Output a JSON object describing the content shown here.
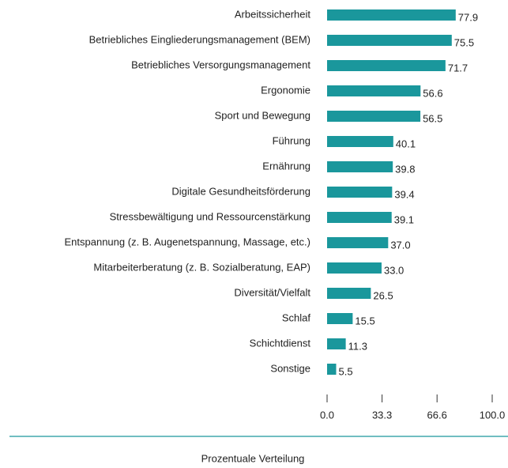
{
  "chart_data": {
    "type": "bar",
    "orientation": "horizontal",
    "x_label": "Prozentuale Verteilung",
    "categories": [
      "Arbeitssicherheit",
      "Betriebliches Eingliederungsmanagement (BEM)",
      "Betriebliches Versorgungsmanagement",
      "Ergonomie",
      "Sport und Bewegung",
      "Führung",
      "Ernährung",
      "Digitale Gesundheitsförderung",
      "Stressbewältigung und Ressourcenstärkung",
      "Entspannung (z. B. Augenetspannung, Massage, etc.)",
      "Mitarbeiterberatung (z. B. Sozialberatung, EAP)",
      "Diversität/Vielfalt",
      "Schlaf",
      "Schichtdienst",
      "Sonstige"
    ],
    "values": [
      77.9,
      75.5,
      71.7,
      56.6,
      56.5,
      40.1,
      39.8,
      39.4,
      39.1,
      37.0,
      33.0,
      26.5,
      15.5,
      11.3,
      5.5
    ],
    "value_labels": [
      "77.9",
      "75.5",
      "71.7",
      "56.6",
      "56.5",
      "40.1",
      "39.8",
      "39.4",
      "39.1",
      "37.0",
      "33.0",
      "26.5",
      "15.5",
      "11.3",
      "5.5"
    ],
    "color": "#1a979c",
    "xlim": [
      0,
      100
    ],
    "xticks": [
      {
        "value": 0,
        "label": "0.0"
      },
      33.3,
      66.6,
      {
        "value": 100,
        "label": "100.0"
      }
    ]
  }
}
